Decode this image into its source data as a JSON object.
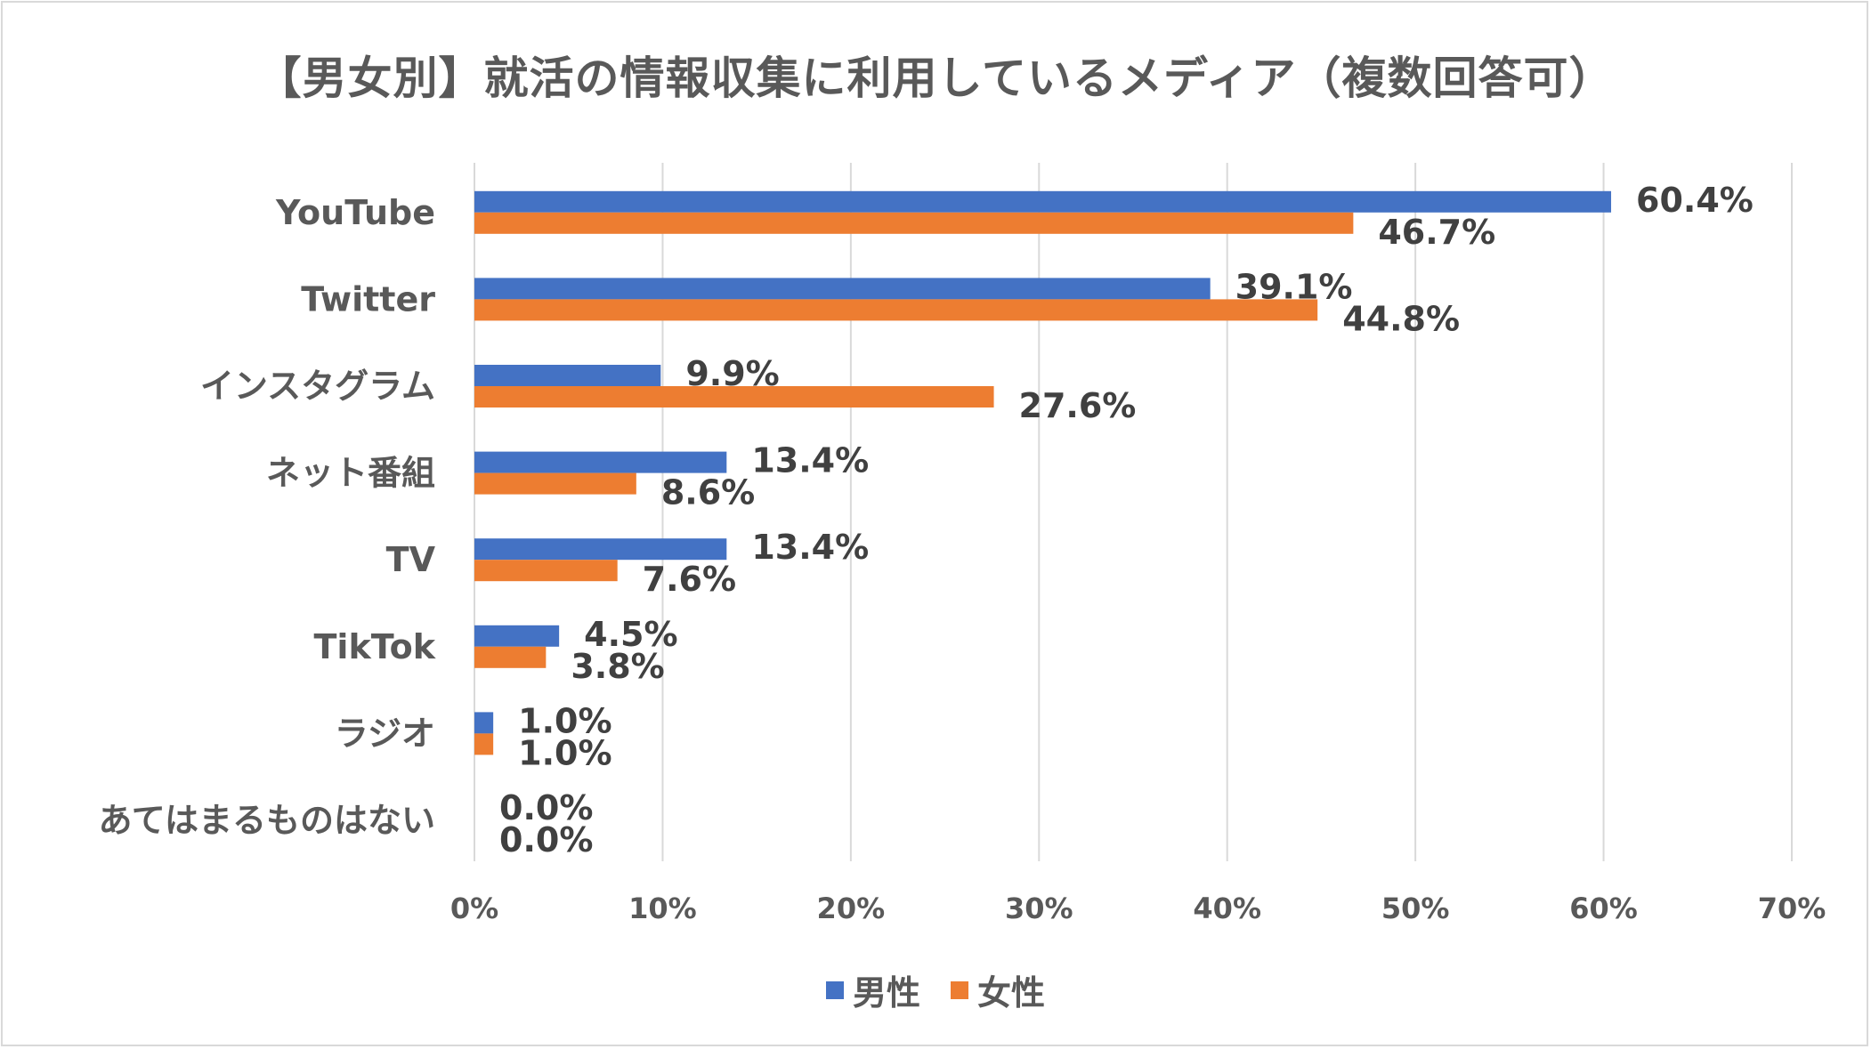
{
  "chart_data": {
    "type": "bar",
    "orientation": "horizontal",
    "title": "【男女別】就活の情報収集に利用しているメディア（複数回答可）",
    "categories": [
      "YouTube",
      "Twitter",
      "インスタグラム",
      "ネット番組",
      "TV",
      "TikTok",
      "ラジオ",
      "あてはまるものはない"
    ],
    "series": [
      {
        "name": "男性",
        "color": "#4472c4",
        "values": [
          60.4,
          39.1,
          9.9,
          13.4,
          13.4,
          4.5,
          1.0,
          0.0
        ],
        "labels": [
          "60.4%",
          "39.1%",
          "9.9%",
          "13.4%",
          "13.4%",
          "4.5%",
          "1.0%",
          "0.0%"
        ]
      },
      {
        "name": "女性",
        "color": "#ed7d31",
        "values": [
          46.7,
          44.8,
          27.6,
          8.6,
          7.6,
          3.8,
          1.0,
          0.0
        ],
        "labels": [
          "46.7%",
          "44.8%",
          "27.6%",
          "8.6%",
          "7.6%",
          "3.8%",
          "1.0%",
          "0.0%"
        ]
      }
    ],
    "xlim": [
      0,
      70
    ],
    "xticks": [
      0,
      10,
      20,
      30,
      40,
      50,
      60,
      70
    ],
    "xtick_labels": [
      "0%",
      "10%",
      "20%",
      "30%",
      "40%",
      "50%",
      "60%",
      "70%"
    ],
    "grid": true,
    "legend_position": "bottom",
    "gridline_color": "#d9d9d9"
  }
}
